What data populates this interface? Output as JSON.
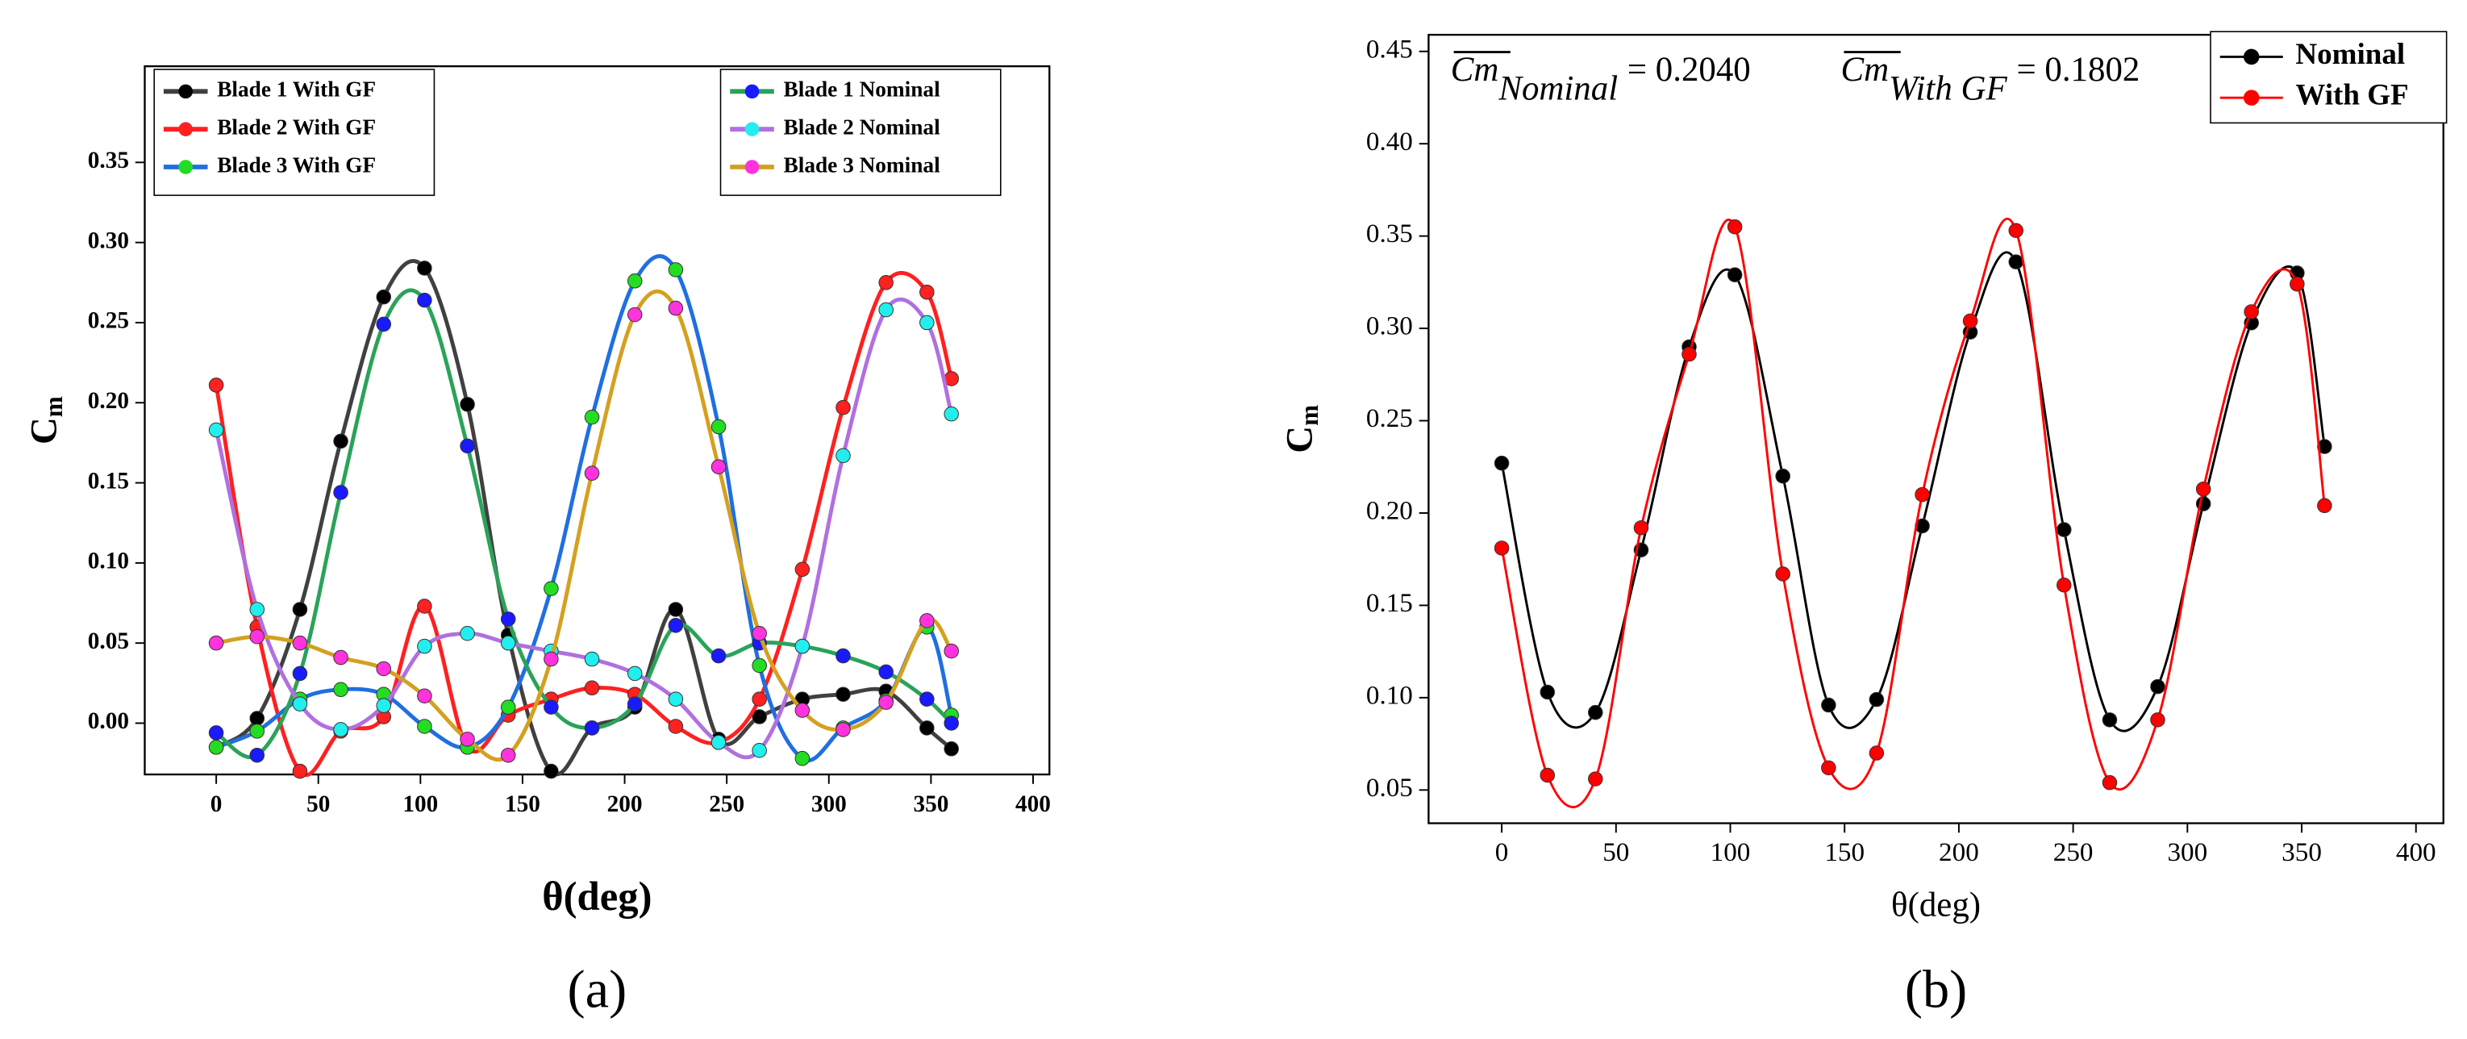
{
  "chart_data": [
    {
      "type": "line",
      "panel_label": "(a)",
      "x_label": "θ(deg)",
      "y_label": {
        "main": "C",
        "sub": "m"
      },
      "x": [
        0,
        20,
        41,
        61,
        82,
        102,
        123,
        143,
        164,
        184,
        205,
        225,
        246,
        266,
        287,
        307,
        328,
        348,
        360
      ],
      "series": [
        {
          "name": "Blade 1 With GF",
          "color": "#404040",
          "marker_color": "#000000",
          "values": [
            -0.015,
            0.003,
            0.071,
            0.176,
            0.266,
            0.284,
            0.199,
            0.055,
            -0.03,
            -0.003,
            0.01,
            0.071,
            -0.01,
            0.004,
            0.015,
            0.018,
            0.02,
            -0.003,
            -0.016
          ]
        },
        {
          "name": "Blade 2 With GF",
          "color": "#ff2020",
          "marker_color": "#ff2020",
          "values": [
            0.211,
            0.06,
            -0.03,
            -0.005,
            0.004,
            0.073,
            -0.015,
            0.005,
            0.015,
            0.022,
            0.018,
            -0.002,
            -0.012,
            0.015,
            0.096,
            0.197,
            0.275,
            0.269,
            0.215
          ]
        },
        {
          "name": "Blade 3 With GF",
          "color": "#1f6fe0",
          "marker_color": "#22dd22",
          "values": [
            -0.015,
            -0.005,
            0.015,
            0.021,
            0.018,
            -0.002,
            -0.015,
            0.01,
            0.084,
            0.191,
            0.276,
            0.283,
            0.185,
            0.036,
            -0.022,
            -0.003,
            0.014,
            0.06,
            0.005
          ]
        },
        {
          "name": "Blade 1 Nominal",
          "color": "#2aa35a",
          "marker_color": "#1a1aff",
          "values": [
            -0.006,
            -0.02,
            0.031,
            0.144,
            0.249,
            0.264,
            0.173,
            0.065,
            0.01,
            -0.003,
            0.012,
            0.061,
            0.042,
            0.05,
            0.048,
            0.042,
            0.032,
            0.015,
            0.0
          ]
        },
        {
          "name": "Blade 2 Nominal",
          "color": "#b070e0",
          "marker_color": "#22eeee",
          "values": [
            0.183,
            0.071,
            0.012,
            -0.004,
            0.011,
            0.048,
            0.056,
            0.05,
            0.045,
            0.04,
            0.031,
            0.015,
            -0.012,
            -0.017,
            0.048,
            0.167,
            0.258,
            0.25,
            0.193
          ]
        },
        {
          "name": "Blade 3 Nominal",
          "color": "#d4a020",
          "marker_color": "#ff33dd",
          "values": [
            0.05,
            0.054,
            0.05,
            0.041,
            0.034,
            0.017,
            -0.01,
            -0.02,
            0.04,
            0.156,
            0.255,
            0.259,
            0.16,
            0.056,
            0.008,
            -0.004,
            0.013,
            0.064,
            0.045
          ]
        }
      ],
      "xlim": [
        -35,
        408
      ],
      "ylim": [
        -0.032,
        0.41
      ],
      "xticks": [
        0,
        50,
        100,
        150,
        200,
        250,
        300,
        350,
        400
      ],
      "yticks": [
        {
          "value": 0,
          "label": "0.00"
        },
        0.05,
        {
          "value": 0.1,
          "label": "0.10"
        },
        0.15,
        {
          "value": 0.2,
          "label": "0.20"
        },
        0.25,
        {
          "value": 0.3,
          "label": "0.30"
        },
        0.35
      ],
      "legend": "top"
    },
    {
      "type": "line",
      "panel_label": "(b)",
      "x_label": "θ(deg)",
      "y_label": {
        "main": "C",
        "sub": "m"
      },
      "annotations": [
        {
          "symbol": "Cm",
          "subscript": "Nominal",
          "text": "= 0.2040"
        },
        {
          "symbol": "Cm",
          "subscript": "With GF",
          "text": "= 0.1802"
        }
      ],
      "x": [
        0,
        20,
        41,
        61,
        82,
        102,
        123,
        143,
        164,
        184,
        205,
        225,
        246,
        266,
        287,
        307,
        328,
        348,
        360
      ],
      "series": [
        {
          "name": "Nominal",
          "color": "#000000",
          "marker_color": "#000000",
          "values": [
            0.227,
            0.103,
            0.092,
            0.18,
            0.29,
            0.329,
            0.22,
            0.096,
            0.099,
            0.193,
            0.298,
            0.336,
            0.191,
            0.088,
            0.106,
            0.205,
            0.303,
            0.33,
            0.236
          ]
        },
        {
          "name": "With GF",
          "color": "#ff0000",
          "marker_color": "#ff0000",
          "values": [
            0.181,
            0.058,
            0.056,
            0.192,
            0.286,
            0.355,
            0.167,
            0.062,
            0.07,
            0.21,
            0.304,
            0.353,
            0.161,
            0.054,
            0.088,
            0.213,
            0.309,
            0.324,
            0.204
          ]
        }
      ],
      "xlim": [
        -32,
        412
      ],
      "ylim": [
        0.032,
        0.459
      ],
      "xticks": [
        0,
        50,
        100,
        150,
        200,
        250,
        300,
        350,
        400
      ],
      "yticks": [
        0.05,
        {
          "value": 0.1,
          "label": "0.10"
        },
        0.15,
        {
          "value": 0.2,
          "label": "0.20"
        },
        0.25,
        {
          "value": 0.3,
          "label": "0.30"
        },
        0.35,
        {
          "value": 0.4,
          "label": "0.40"
        },
        0.45
      ],
      "legend": "upper right"
    }
  ]
}
